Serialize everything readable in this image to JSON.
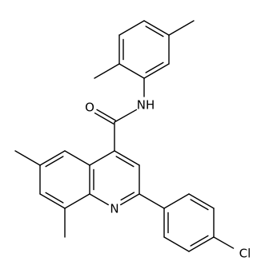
{
  "labels": [
    "O",
    "NH",
    "N",
    "Cl"
  ]
}
